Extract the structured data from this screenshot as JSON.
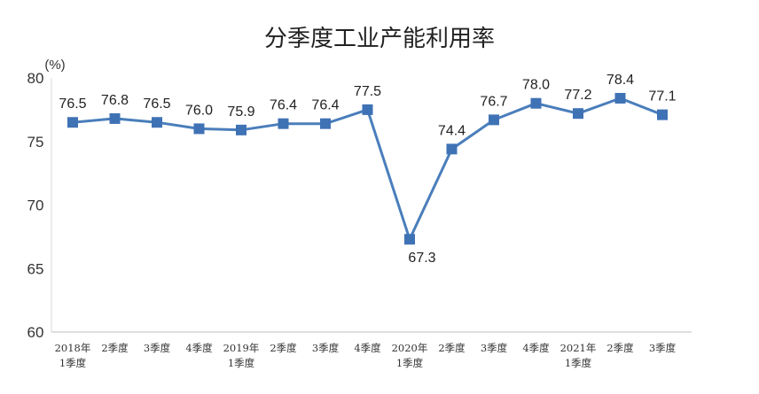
{
  "chart_data": {
    "type": "line",
    "title": "分季度工业产能利用率",
    "unit": "(%)",
    "categories": [
      [
        "2018年",
        "1季度"
      ],
      [
        "2季度"
      ],
      [
        "3季度"
      ],
      [
        "4季度"
      ],
      [
        "2019年",
        "1季度"
      ],
      [
        "2季度"
      ],
      [
        "3季度"
      ],
      [
        "4季度"
      ],
      [
        "2020年",
        "1季度"
      ],
      [
        "2季度"
      ],
      [
        "3季度"
      ],
      [
        "4季度"
      ],
      [
        "2021年",
        "1季度"
      ],
      [
        "2季度"
      ],
      [
        "3季度"
      ]
    ],
    "series": [
      {
        "values": [
          76.5,
          76.8,
          76.5,
          76.0,
          75.9,
          76.4,
          76.4,
          77.5,
          67.3,
          74.4,
          76.7,
          78.0,
          77.2,
          78.4,
          77.1
        ],
        "labels": [
          "76.5",
          "76.8",
          "76.5",
          "76.0",
          "75.9",
          "76.4",
          "76.4",
          "77.5",
          "67.3",
          "74.4",
          "76.7",
          "78.0",
          "77.2",
          "78.4",
          "77.1"
        ],
        "color": "#4a7ebb",
        "marker_color": "#3f72b5"
      }
    ],
    "ylim": [
      60,
      80
    ],
    "yticks": [
      "60",
      "65",
      "70",
      "75",
      "80"
    ],
    "grid": false,
    "legend": "none"
  }
}
